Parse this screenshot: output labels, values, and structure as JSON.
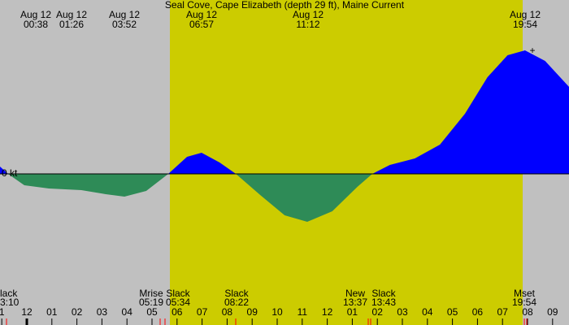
{
  "chart_data": {
    "type": "area",
    "title": "Seal Cove, Cape Elizabeth (depth 29 ft), Maine Current",
    "x": [
      -1.07,
      -0.75,
      -0.1,
      0.88,
      2.18,
      3.15,
      3.9,
      4.77,
      5.65,
      6.4,
      6.98,
      7.7,
      8.35,
      9.32,
      10.3,
      11.2,
      12.2,
      13.2,
      13.8,
      14.5,
      15.5,
      16.5,
      17.5,
      18.4,
      19.2,
      19.9,
      20.7,
      21.66
    ],
    "values": [
      0.09,
      0,
      -0.14,
      -0.18,
      -0.2,
      -0.25,
      -0.28,
      -0.21,
      0,
      0.21,
      0.26,
      0.14,
      0,
      -0.26,
      -0.51,
      -0.59,
      -0.46,
      -0.16,
      0,
      0.11,
      0.19,
      0.36,
      0.74,
      1.19,
      1.46,
      1.52,
      1.39,
      1.07
    ],
    "flood_color": "#0000ff",
    "ebb_color": "#2e8b57",
    "xlim": [
      -1.07,
      21.66
    ],
    "ylim": [
      -1.86,
      2.14
    ],
    "yticks": [
      {
        "value": 0,
        "label": "0 kt"
      }
    ],
    "xticks": [
      {
        "value": -1,
        "label": "1"
      },
      {
        "value": 0,
        "label": "12"
      },
      {
        "value": 1,
        "label": "01"
      },
      {
        "value": 2,
        "label": "02"
      },
      {
        "value": 3,
        "label": "03"
      },
      {
        "value": 4,
        "label": "04"
      },
      {
        "value": 5,
        "label": "05"
      },
      {
        "value": 6,
        "label": "06"
      },
      {
        "value": 7,
        "label": "07"
      },
      {
        "value": 8,
        "label": "08"
      },
      {
        "value": 9,
        "label": "09"
      },
      {
        "value": 10,
        "label": "10"
      },
      {
        "value": 11,
        "label": "11"
      },
      {
        "value": 12,
        "label": "12"
      },
      {
        "value": 13,
        "label": "01"
      },
      {
        "value": 14,
        "label": "02"
      },
      {
        "value": 15,
        "label": "03"
      },
      {
        "value": 16,
        "label": "04"
      },
      {
        "value": 17,
        "label": "05"
      },
      {
        "value": 18,
        "label": "06"
      },
      {
        "value": 19,
        "label": "07"
      },
      {
        "value": 20,
        "label": "08"
      },
      {
        "value": 21,
        "label": "09"
      }
    ],
    "top_labels": [
      [
        "Aug 12",
        "00:38"
      ],
      [
        "Aug 12",
        "01:26"
      ],
      [
        "Aug 12",
        "03:52"
      ],
      [
        "Aug 12",
        "06:57"
      ],
      [
        "Aug 12",
        "11:12"
      ],
      [
        "Aug 12",
        "19:54"
      ]
    ],
    "bottom_labels": [
      [
        "lack",
        "3:10"
      ],
      [
        "Mrise",
        "05:19"
      ],
      [
        "Slack",
        "05:34"
      ],
      [
        "Slack",
        "08:22"
      ],
      [
        "New",
        "13:37"
      ],
      [
        "Slack",
        "13:43"
      ],
      [
        "Mset",
        "19:54"
      ]
    ]
  }
}
